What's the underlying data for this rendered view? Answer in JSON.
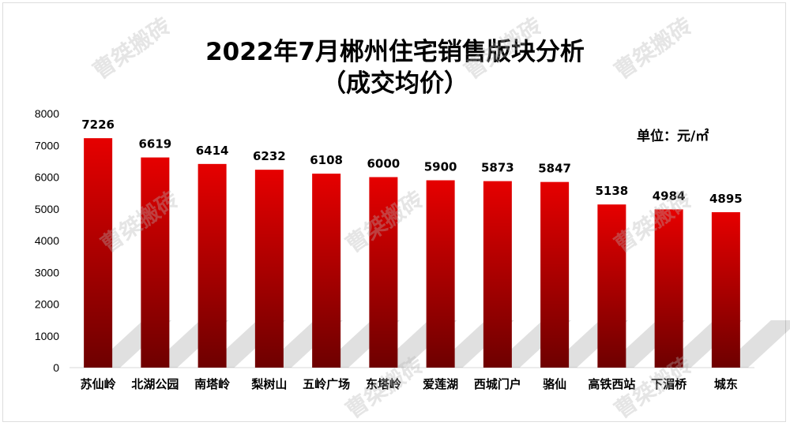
{
  "chart_data": {
    "type": "bar",
    "title": "2022年7月郴州住宅销售版块分析",
    "subtitle": "（成交均价）",
    "unit_label": "单位：元/㎡",
    "xlabel": "",
    "ylabel": "",
    "categories": [
      "苏仙岭",
      "北湖公园",
      "南塔岭",
      "梨树山",
      "五岭广场",
      "东塔岭",
      "爱莲湖",
      "西城门户",
      "骆仙",
      "高铁西站",
      "下湄桥",
      "城东"
    ],
    "values": [
      7226,
      6619,
      6414,
      6232,
      6108,
      6000,
      5900,
      5873,
      5847,
      5138,
      4984,
      4895
    ],
    "ylim": [
      0,
      8000
    ],
    "yticks": [
      0,
      1000,
      2000,
      3000,
      4000,
      5000,
      6000,
      7000,
      8000
    ],
    "grid": false,
    "legend": "none",
    "bar_color_top": "#e60000",
    "bar_color_bottom": "#6e0000"
  },
  "watermark": "曹桀搬砖"
}
